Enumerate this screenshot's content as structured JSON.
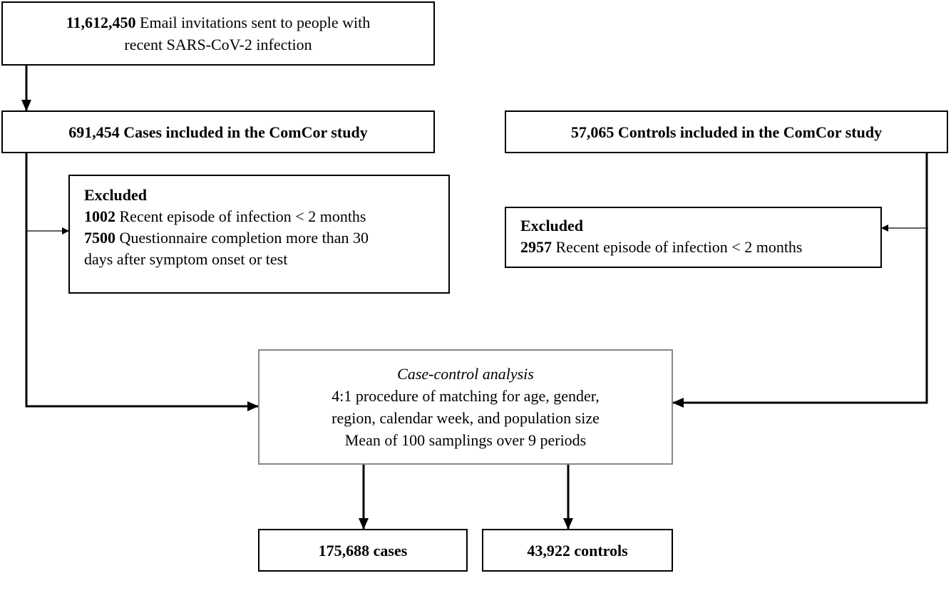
{
  "invitations": {
    "number": "11,612,450",
    "line1": "Email invitations sent to people with",
    "line2": "recent SARS-CoV-2 infection"
  },
  "cases_included": "691,454 Cases included in the ComCor study",
  "controls_included": "57,065 Controls included in the ComCor study",
  "cases_excluded": {
    "title": "Excluded",
    "items": [
      {
        "number": "1002",
        "lines": [
          "Recent episode of infection < 2 months"
        ]
      },
      {
        "number": "7500",
        "lines": [
          "Questionnaire completion more than 30",
          "days after symptom onset or test"
        ]
      }
    ]
  },
  "controls_excluded": {
    "title": "Excluded",
    "items": [
      {
        "number": "2957",
        "lines": [
          "Recent episode of infection < 2 months"
        ]
      }
    ]
  },
  "analysis": {
    "title": "Case-control analysis",
    "lines": [
      "4:1 procedure of matching for age, gender,",
      "region, calendar week, and population size",
      "Mean of 100 samplings over 9 periods"
    ]
  },
  "final_cases": "175,688 cases",
  "final_controls": "43,922 controls"
}
